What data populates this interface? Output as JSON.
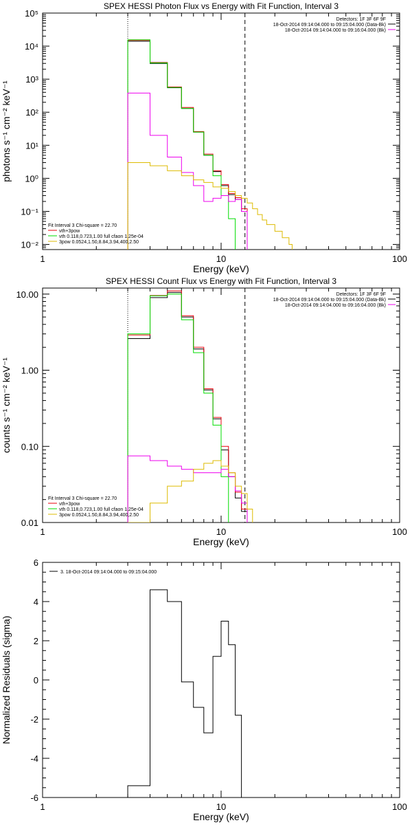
{
  "chart_data": [
    {
      "type": "line",
      "title": "SPEX HESSI Photon Flux vs Energy with Fit Function, Interval 3",
      "xlabel": "Energy (keV)",
      "ylabel": "photons s⁻¹ cm⁻² keV⁻¹",
      "xscale": "log",
      "yscale": "log",
      "xlim": [
        1,
        100
      ],
      "ylim": [
        0.007,
        100000
      ],
      "xticks": [
        "1",
        "10",
        "100"
      ],
      "yticks": [
        "10⁻²",
        "10⁻¹",
        "10⁰",
        "10¹",
        "10²",
        "10³",
        "10⁴",
        "10⁵"
      ],
      "legend_top_right": [
        "Detectors: 1F 3F 6F 9F",
        "18-Oct-2014 09:14:04.000 to 09:15:04.000 (Data-Bk)",
        "18-Oct-2014 09:14:04.000 to 09:16:04.000 (Bk)"
      ],
      "legend_bottom_left": [
        "Fit Interval 3   Chi-square = 22.70",
        "vth+3pow",
        "vth 0.118,0.723,1.00  full cfaon 1.25e-04",
        "3pow 0.0524,1.50,8.84,3.94,400,2.50"
      ],
      "vlines": [
        {
          "x": 3,
          "style": "dotted"
        },
        {
          "x": 13.6,
          "style": "dashed"
        }
      ],
      "series": [
        {
          "name": "data",
          "color": "#000000",
          "x": [
            3,
            4,
            5,
            6,
            7,
            8,
            9,
            10,
            11,
            12,
            13,
            14
          ],
          "y": [
            14000,
            3000,
            550,
            130,
            25,
            5,
            1.6,
            0.6,
            0.32,
            0.23,
            0.1,
            0.007
          ]
        },
        {
          "name": "vth+3pow",
          "color": "#e8000b",
          "x": [
            3,
            4,
            5,
            6,
            7,
            8,
            9,
            10,
            11,
            12,
            13,
            14
          ],
          "y": [
            15000,
            3200,
            580,
            140,
            26,
            5.4,
            1.7,
            0.65,
            0.35,
            0.26,
            0.12,
            0.007
          ]
        },
        {
          "name": "vth",
          "color": "#00dd00",
          "x": [
            3,
            4,
            5,
            6,
            7,
            8,
            9,
            10,
            11,
            12
          ],
          "y": [
            15500,
            3100,
            560,
            130,
            25,
            5,
            1.2,
            0.3,
            0.06,
            0.007
          ]
        },
        {
          "name": "3pow",
          "color": "#ee00ee",
          "x": [
            3,
            4,
            5,
            6,
            7,
            8,
            9,
            10,
            11,
            12,
            13,
            14
          ],
          "y": [
            380,
            20,
            4.4,
            1.5,
            0.6,
            0.2,
            0.25,
            0.3,
            0.2,
            0.23,
            0.1,
            0.007
          ]
        },
        {
          "name": "background",
          "color": "#ddbb00",
          "x": [
            3,
            4,
            5,
            6,
            7,
            8,
            9,
            10,
            11,
            12,
            13,
            14,
            15,
            16,
            17,
            18,
            20,
            22,
            24,
            25
          ],
          "y": [
            3,
            2.4,
            1.7,
            1.2,
            0.9,
            0.75,
            0.55,
            0.5,
            0.4,
            0.3,
            0.25,
            0.18,
            0.12,
            0.08,
            0.055,
            0.04,
            0.025,
            0.016,
            0.01,
            0.007
          ]
        }
      ]
    },
    {
      "type": "line",
      "title": "SPEX HESSI Count Flux vs Energy with Fit Function, Interval 3",
      "xlabel": "Energy (keV)",
      "ylabel": "counts s⁻¹ cm⁻² keV⁻¹",
      "xscale": "log",
      "yscale": "log",
      "xlim": [
        1,
        100
      ],
      "ylim": [
        0.01,
        12
      ],
      "xticks": [
        "1",
        "10",
        "100"
      ],
      "yticks": [
        "0.01",
        "0.10",
        "1.00",
        "10.00"
      ],
      "legend_top_right": [
        "Detectors: 1F 3F 6F 9F",
        "18-Oct-2014 09:14:04.000 to 09:15:04.000 (Data-Bk)",
        "18-Oct-2014 09:14:04.000 to 09:16:04.000 (Bk)"
      ],
      "legend_bottom_left": [
        "Fit Interval 3   Chi-square = 22.70",
        "vth+3pow",
        "vth 0.118,0.723,1.00  full cfaon 1.25e-04",
        "3pow 0.0524,1.50,8.84,3.94,400,2.50"
      ],
      "vlines": [
        {
          "x": 3,
          "style": "dotted"
        },
        {
          "x": 13.6,
          "style": "dashed"
        }
      ],
      "series": [
        {
          "name": "data",
          "color": "#000000",
          "x": [
            3,
            4,
            5,
            6,
            7,
            8,
            9,
            10,
            11,
            12,
            13,
            14
          ],
          "y": [
            2.6,
            9,
            10.5,
            5,
            1.9,
            0.55,
            0.23,
            0.09,
            0.04,
            0.021,
            0.014,
            0.007
          ]
        },
        {
          "name": "vth+3pow",
          "color": "#e8000b",
          "x": [
            3,
            4,
            5,
            6,
            7,
            8,
            9,
            10,
            11,
            12,
            13,
            14
          ],
          "y": [
            2.9,
            9.6,
            11,
            5.2,
            2,
            0.57,
            0.24,
            0.1,
            0.045,
            0.025,
            0.015,
            0.007
          ]
        },
        {
          "name": "vth",
          "color": "#00dd00",
          "x": [
            3,
            4,
            5,
            6,
            7,
            8,
            9,
            10,
            11
          ],
          "y": [
            3,
            9.5,
            10,
            4.6,
            1.7,
            0.5,
            0.19,
            0.04,
            0.007
          ]
        },
        {
          "name": "3pow",
          "color": "#ee00ee",
          "x": [
            3,
            4,
            5,
            6,
            7,
            8,
            9,
            10,
            11,
            12,
            13,
            14
          ],
          "y": [
            0.075,
            0.065,
            0.055,
            0.05,
            0.045,
            0.045,
            0.045,
            0.05,
            0.04,
            0.026,
            0.018,
            0.007
          ]
        },
        {
          "name": "background",
          "color": "#ddbb00",
          "x": [
            3,
            4,
            5,
            6,
            7,
            8,
            9,
            10,
            11,
            12,
            13,
            14,
            15
          ],
          "y": [
            0.007,
            0.018,
            0.03,
            0.035,
            0.05,
            0.06,
            0.065,
            0.055,
            0.045,
            0.03,
            0.024,
            0.015,
            0.007
          ]
        }
      ]
    },
    {
      "type": "line",
      "title": "",
      "xlabel": "Energy (keV)",
      "ylabel": "Normalized Residuals (sigma)",
      "xscale": "log",
      "yscale": "linear",
      "xlim": [
        1,
        100
      ],
      "ylim": [
        -6,
        6
      ],
      "xticks": [
        "1",
        "10",
        "100"
      ],
      "yticks": [
        "-6",
        "-4",
        "-2",
        "0",
        "2",
        "4",
        "6"
      ],
      "legend_top_left": [
        "3. 18-Oct-2014 09:14:04.000 to 09:15:04.000"
      ],
      "series": [
        {
          "name": "residuals",
          "color": "#000000",
          "x": [
            3,
            4,
            5,
            6,
            7,
            8,
            9,
            10,
            11,
            12,
            13,
            14
          ],
          "y": [
            -5.4,
            4.6,
            4,
            -0.1,
            -1.4,
            -2.7,
            1.2,
            3,
            1.8,
            -1.8,
            -6.5,
            -6.5
          ]
        }
      ]
    }
  ]
}
